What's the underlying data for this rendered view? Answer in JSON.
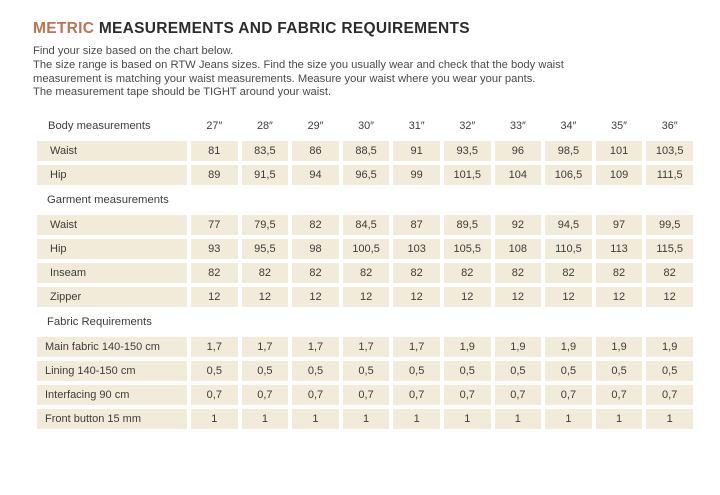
{
  "header": {
    "title_accent": "METRIC",
    "title_rest": "MEASUREMENTS AND FABRIC REQUIREMENTS"
  },
  "intro_lines": [
    "Find your size based on the chart below.",
    "The size range is based on RTW Jeans sizes. Find the size you usually wear and check that the body waist",
    "measurement is matching your waist measurements. Measure your waist where you wear your pants.",
    "The measurement tape should be TIGHT around your waist."
  ],
  "colors": {
    "accent": "#bd7352",
    "cell_bg": "#f3ebd9",
    "title_text": "#2d2c2b",
    "body_text": "#4b4a48"
  },
  "table": {
    "header": {
      "label": "Body measurements",
      "columns": [
        "27″",
        "28″",
        "29″",
        "30″",
        "31″",
        "32″",
        "33″",
        "34″",
        "35″",
        "36″"
      ]
    },
    "sections": [
      {
        "heading": null,
        "id": "body",
        "rows": [
          {
            "label": "Waist",
            "values": [
              "81",
              "83,5",
              "86",
              "88,5",
              "91",
              "93,5",
              "96",
              "98,5",
              "101",
              "103,5"
            ]
          },
          {
            "label": "Hip",
            "values": [
              "89",
              "91,5",
              "94",
              "96,5",
              "99",
              "101,5",
              "104",
              "106,5",
              "109",
              "111,5"
            ]
          }
        ]
      },
      {
        "heading": "Garment measurements",
        "id": "garment",
        "rows": [
          {
            "label": "Waist",
            "values": [
              "77",
              "79,5",
              "82",
              "84,5",
              "87",
              "89,5",
              "92",
              "94,5",
              "97",
              "99,5"
            ]
          },
          {
            "label": "Hip",
            "values": [
              "93",
              "95,5",
              "98",
              "100,5",
              "103",
              "105,5",
              "108",
              "110,5",
              "113",
              "115,5"
            ]
          },
          {
            "label": "Inseam",
            "values": [
              "82",
              "82",
              "82",
              "82",
              "82",
              "82",
              "82",
              "82",
              "82",
              "82"
            ]
          },
          {
            "label": "Zipper",
            "values": [
              "12",
              "12",
              "12",
              "12",
              "12",
              "12",
              "12",
              "12",
              "12",
              "12"
            ]
          }
        ]
      },
      {
        "heading": "Fabric Requirements",
        "id": "fabric",
        "rows": [
          {
            "label": "Main fabric 140-150 cm",
            "values": [
              "1,7",
              "1,7",
              "1,7",
              "1,7",
              "1,7",
              "1,9",
              "1,9",
              "1,9",
              "1,9",
              "1,9"
            ]
          },
          {
            "label": "Lining 140-150 cm",
            "values": [
              "0,5",
              "0,5",
              "0,5",
              "0,5",
              "0,5",
              "0,5",
              "0,5",
              "0,5",
              "0,5",
              "0,5"
            ]
          },
          {
            "label": "Interfacing 90 cm",
            "values": [
              "0,7",
              "0,7",
              "0,7",
              "0,7",
              "0,7",
              "0,7",
              "0,7",
              "0,7",
              "0,7",
              "0,7"
            ]
          },
          {
            "label": "Front button 15 mm",
            "values": [
              "1",
              "1",
              "1",
              "1",
              "1",
              "1",
              "1",
              "1",
              "1",
              "1"
            ]
          }
        ]
      }
    ]
  }
}
